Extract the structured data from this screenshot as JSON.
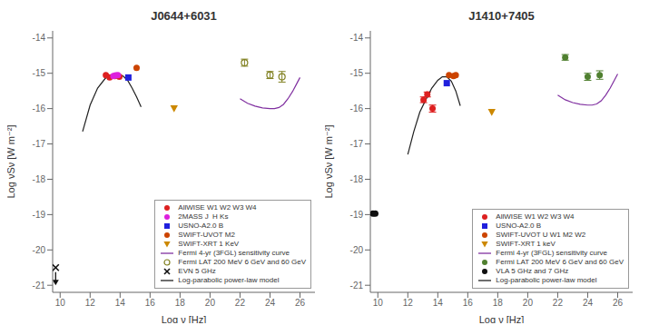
{
  "chart_data": [
    {
      "type": "scatter",
      "title": "J0644+6031",
      "x_label": "Log ν [Hz]",
      "y_label": "Log νSν [W m⁻²]",
      "xlim": [
        9.5,
        27.0
      ],
      "ylim": [
        -21.2,
        -13.8
      ],
      "xticks": [
        10,
        12,
        14,
        16,
        18,
        20,
        22,
        24,
        26
      ],
      "yticks": [
        -14,
        -15,
        -16,
        -17,
        -18,
        -19,
        -20,
        -21
      ],
      "grid": false,
      "legend": "lower right",
      "series": [
        {
          "name": "AllWISE W1 W2 W3 W4",
          "type": "scatter",
          "color": "#dd2020",
          "marker": "circle",
          "x": [
            13.05,
            13.3,
            13.65,
            13.95
          ],
          "values": [
            -15.05,
            -15.12,
            -15.08,
            -15.1
          ]
        },
        {
          "name": "2MASS J  H Ks",
          "type": "scatter",
          "color": "#dd20dd",
          "marker": "circle",
          "x": [
            13.55,
            13.7,
            13.85
          ],
          "values": [
            -15.08,
            -15.06,
            -15.05
          ]
        },
        {
          "name": "USNO-A2.0 B",
          "type": "scatter",
          "color": "#2020dd",
          "marker": "square",
          "x": [
            14.55
          ],
          "values": [
            -15.12
          ]
        },
        {
          "name": "SWIFT-UVOT M2",
          "type": "scatter",
          "color": "#cc4400",
          "marker": "circle",
          "x": [
            15.1
          ],
          "values": [
            -14.85
          ]
        },
        {
          "name": "SWIFT-XRT 1 KeV",
          "type": "scatter",
          "color": "#cc8800",
          "marker": "triangle_down",
          "x": [
            17.6
          ],
          "values": [
            -16.0
          ]
        },
        {
          "name": "Fermi 4-yr (3FGL) sensitivity curve",
          "type": "line",
          "color": "#8030a0",
          "line_style": "solid",
          "x": [
            22.0,
            22.5,
            23.0,
            23.5,
            24.0,
            24.3,
            24.6,
            24.9,
            25.2,
            25.5,
            25.8,
            26.0
          ],
          "values": [
            -15.72,
            -15.85,
            -15.93,
            -15.98,
            -16.0,
            -16.0,
            -15.97,
            -15.88,
            -15.72,
            -15.52,
            -15.28,
            -15.12
          ]
        },
        {
          "name": "Fermi LAT 200 MeV 6 GeV and 60 GeV",
          "type": "scatter",
          "color": "#808020",
          "marker": "open_circle",
          "x": [
            22.3,
            24.0,
            24.8
          ],
          "values": [
            -14.7,
            -15.05,
            -15.1
          ],
          "errors": [
            [
              0.1,
              0.1
            ],
            [
              0.1,
              0.1
            ],
            [
              0.15,
              0.15
            ]
          ]
        },
        {
          "name": "EVN 5 GHz",
          "type": "scatter",
          "color": "#101010",
          "marker": "x",
          "x": [
            9.7
          ],
          "values": [
            -20.5
          ],
          "arrow_to": [
            -21.0
          ]
        },
        {
          "name": "Log-parabolic power-law model",
          "type": "line",
          "color": "#202020",
          "line_style": "solid",
          "x": [
            11.5,
            12.0,
            12.5,
            13.0,
            13.3,
            13.6,
            13.9,
            14.2,
            14.5,
            14.8,
            15.1,
            15.4
          ],
          "values": [
            -16.65,
            -15.9,
            -15.42,
            -15.15,
            -15.07,
            -15.02,
            -15.02,
            -15.08,
            -15.2,
            -15.42,
            -15.67,
            -15.95
          ]
        }
      ]
    },
    {
      "type": "scatter",
      "title": "J1410+7405",
      "x_label": "Log ν [Hz]",
      "y_label": "Log νSν [W m⁻²]",
      "xlim": [
        9.5,
        27.0
      ],
      "ylim": [
        -21.2,
        -13.8
      ],
      "xticks": [
        10,
        12,
        14,
        16,
        18,
        20,
        22,
        24,
        26
      ],
      "yticks": [
        -14,
        -15,
        -16,
        -17,
        -18,
        -19,
        -20,
        -21
      ],
      "grid": false,
      "legend": "lower right",
      "series": [
        {
          "name": "AllWISE W1 W2 W3 W4",
          "type": "scatter",
          "color": "#dd2020",
          "marker": "circle",
          "x": [
            13.05,
            13.3,
            13.65
          ],
          "values": [
            -15.75,
            -15.6,
            -16.0
          ],
          "errors": [
            [
              0.08,
              0.08
            ],
            [
              0.07,
              0.07
            ],
            [
              0.1,
              0.1
            ]
          ]
        },
        {
          "name": "USNO-A2.0 B",
          "type": "scatter",
          "color": "#2020dd",
          "marker": "square",
          "x": [
            14.6
          ],
          "values": [
            -15.28
          ]
        },
        {
          "name": "SWIFT-UVOT U W1 M2 W2",
          "type": "scatter",
          "color": "#cc4400",
          "marker": "circle",
          "x": [
            14.75,
            15.05,
            15.2
          ],
          "values": [
            -15.05,
            -15.08,
            -15.05
          ]
        },
        {
          "name": "SWIFT-XRT 1 keV",
          "type": "scatter",
          "color": "#cc8800",
          "marker": "triangle_down",
          "x": [
            17.6
          ],
          "values": [
            -16.1
          ]
        },
        {
          "name": "Fermi 4-yr (3FGL) sensitivity curve",
          "type": "line",
          "color": "#8030a0",
          "line_style": "solid",
          "x": [
            22.0,
            22.5,
            23.0,
            23.5,
            24.0,
            24.3,
            24.6,
            24.9,
            25.2,
            25.5,
            25.8,
            26.0
          ],
          "values": [
            -15.62,
            -15.75,
            -15.83,
            -15.88,
            -15.9,
            -15.9,
            -15.87,
            -15.78,
            -15.62,
            -15.42,
            -15.18,
            -15.02
          ]
        },
        {
          "name": "Fermi LAT 200 MeV 6 GeV and 60 GeV",
          "type": "scatter",
          "color": "#508030",
          "marker": "circle",
          "x": [
            22.5,
            24.0,
            24.8
          ],
          "values": [
            -14.55,
            -15.1,
            -15.05
          ],
          "errors": [
            [
              0.08,
              0.08
            ],
            [
              0.1,
              0.1
            ],
            [
              0.12,
              0.12
            ]
          ]
        },
        {
          "name": "VLA 5 GHz and 7 GHz",
          "type": "scatter",
          "color": "#101010",
          "marker": "circle",
          "x": [
            9.68,
            9.83
          ],
          "values": [
            -18.97,
            -18.97
          ]
        },
        {
          "name": "Log-parabolic power-law model",
          "type": "line",
          "color": "#202020",
          "line_style": "solid",
          "x": [
            12.0,
            12.4,
            12.8,
            13.2,
            13.6,
            14.0,
            14.3,
            14.6,
            14.9,
            15.2,
            15.5
          ],
          "values": [
            -17.3,
            -16.65,
            -16.1,
            -15.75,
            -15.42,
            -15.2,
            -15.1,
            -15.1,
            -15.22,
            -15.5,
            -15.92
          ]
        }
      ]
    }
  ]
}
